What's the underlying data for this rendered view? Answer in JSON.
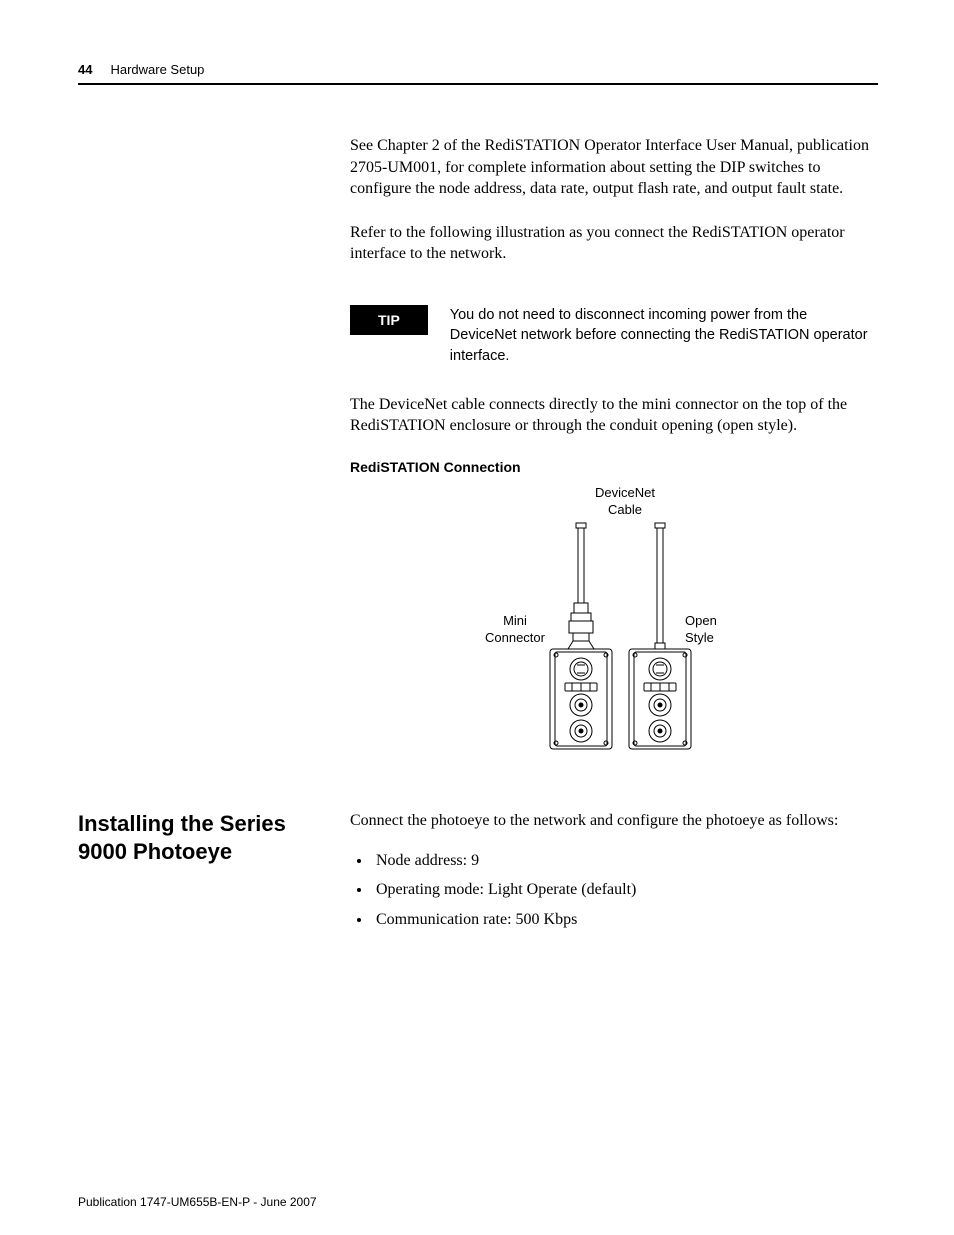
{
  "header": {
    "page_number": "44",
    "chapter": "Hardware Setup"
  },
  "paragraphs": {
    "p1": "See Chapter 2 of the RediSTATION Operator Interface User Manual, publication 2705-UM001, for complete information about setting the DIP switches to configure the node address, data rate, output flash rate, and output fault state.",
    "p2": "Refer to the following illustration as you connect the RediSTATION operator interface to the network.",
    "p3": "The DeviceNet cable connects directly to the mini connector on the top of the RediSTATION enclosure or through the conduit opening (open style)."
  },
  "tip": {
    "badge": "TIP",
    "text": "You do not need to disconnect incoming power from the DeviceNet network before connecting the RediSTATION operator interface."
  },
  "figure": {
    "title": "RediSTATION Connection",
    "labels": {
      "cable": "DeviceNet\nCable",
      "mini": "Mini\nConnector",
      "open": "Open\nStyle"
    },
    "stroke": "#000000",
    "fill": "#ffffff"
  },
  "section": {
    "heading": "Installing the Series 9000 Photoeye",
    "intro": "Connect the photoeye to the network and configure the photoeye as follows:",
    "bullets": [
      "Node address: 9",
      "Operating mode: Light Operate (default)",
      "Communication rate: 500 Kbps"
    ]
  },
  "footer": "Publication 1747-UM655B-EN-P - June 2007"
}
